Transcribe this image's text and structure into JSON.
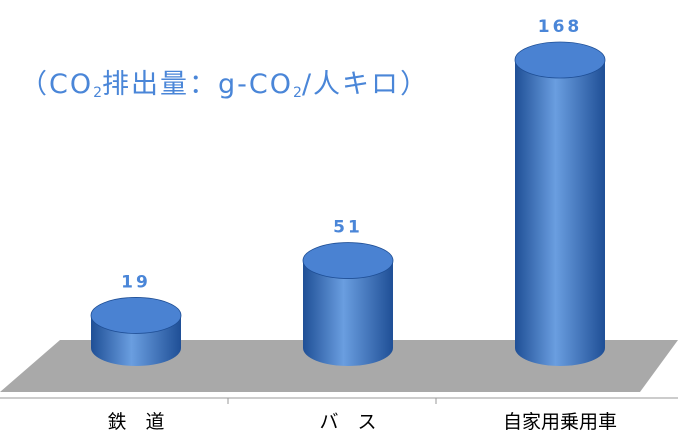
{
  "unit_label": {
    "open": "（",
    "co2_pre": "CO",
    "co2_sub": "2",
    "text1": "排出量：g-CO",
    "co2b_sub": "2",
    "text2": "/人キロ",
    "close": "）"
  },
  "chart_data": {
    "type": "bar",
    "style": "3d-cylinder",
    "categories": [
      "鉄　道",
      "バ　ス",
      "自家用乗用車"
    ],
    "values": [
      19,
      51,
      168
    ],
    "data_labels": [
      "19",
      "51",
      "168"
    ],
    "ylim": [
      0,
      175
    ],
    "grid": false,
    "legend": "none",
    "colors": {
      "bar": "#3d74c4",
      "bar_dark": "#1f4f96",
      "bar_light": "#6a9ee0",
      "top": "#4a82d2",
      "floor": "#a9a9a9",
      "label": "#4a86d8",
      "category": "#000000"
    }
  }
}
